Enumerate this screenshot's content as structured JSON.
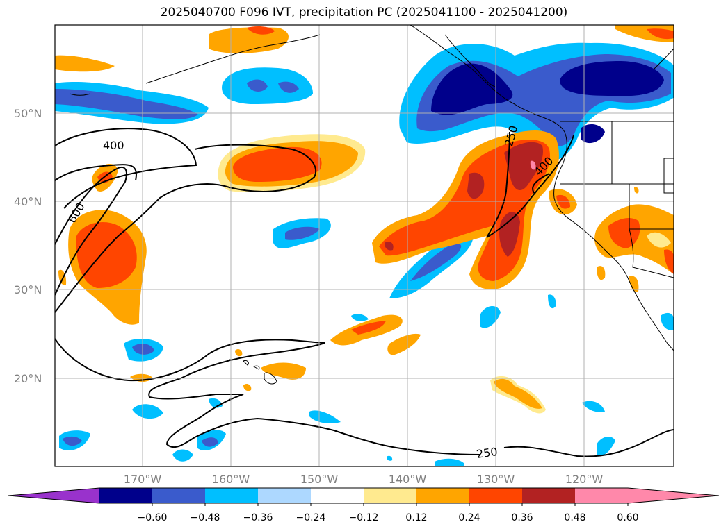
{
  "title": "2025040700 F096 IVT, precipitation PC (2025041100 - 2025041200)",
  "map": {
    "lat_ticks": [
      "50°N",
      "40°N",
      "30°N",
      "20°N"
    ],
    "lon_ticks": [
      "170°W",
      "160°W",
      "150°W",
      "140°W",
      "130°W",
      "120°W"
    ],
    "contour_labels": [
      "400",
      "600",
      "250",
      "400",
      "250"
    ]
  },
  "colorbar": {
    "ticks": [
      "−0.60",
      "−0.48",
      "−0.36",
      "−0.24",
      "−0.12",
      "0.12",
      "0.24",
      "0.36",
      "0.48",
      "0.60"
    ],
    "colors": {
      "under": "#9932cc",
      "bins": [
        "#00008b",
        "#3a5bcc",
        "#00bfff",
        "#add8ff",
        "#ffffff",
        "#ffea8f",
        "#ffa500",
        "#ff4500",
        "#b22222",
        "#ff88aa"
      ]
    }
  }
}
